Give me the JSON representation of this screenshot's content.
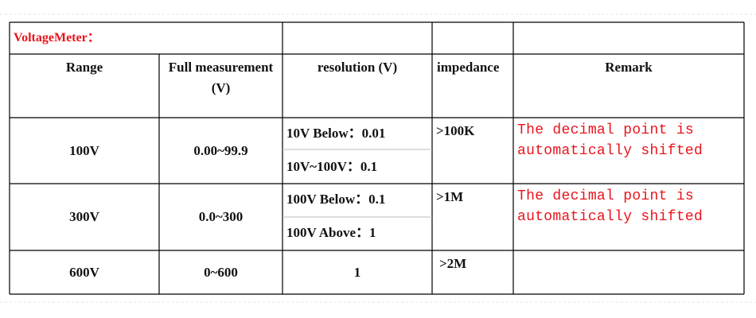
{
  "title": "VoltageMeter：",
  "table": {
    "header": [
      "Range",
      "Full measurement (V)",
      "resolution (V)",
      "impedance",
      "Remark"
    ],
    "rows": [
      {
        "range": "100V",
        "full": "0.00~99.9",
        "resolution": [
          "10V Below：0.01",
          "10V~100V：0.1"
        ],
        "impedance": ">100K",
        "remark": "The decimal point is automatically shifted"
      },
      {
        "range": "300V",
        "full": "0.0~300",
        "resolution": [
          "100V Below：0.1",
          "100V Above：1"
        ],
        "impedance": ">1M",
        "remark": "The decimal point is automatically shifted"
      },
      {
        "range": "600V",
        "full": "0~600",
        "resolution": [
          "1"
        ],
        "impedance": ">2M",
        "remark": ""
      }
    ]
  }
}
